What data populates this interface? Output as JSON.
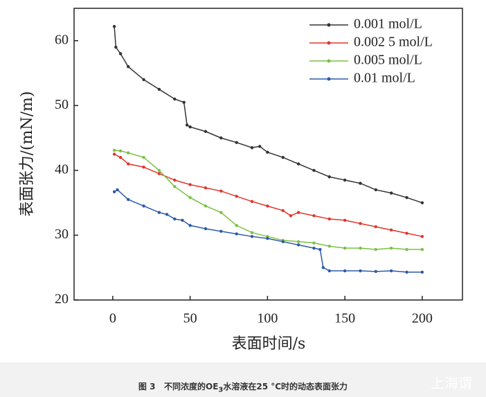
{
  "chart_data": {
    "type": "line",
    "x_label": "表面时间/s",
    "y_label": "表面张力/(mN/m)",
    "xlim": [
      -25,
      226
    ],
    "ylim": [
      20,
      65
    ],
    "xticks": [
      0,
      50,
      100,
      150,
      200
    ],
    "yticks": [
      20,
      30,
      40,
      50,
      60
    ],
    "legend": "upper right",
    "series": [
      {
        "name": "0.001 mol/L",
        "color": "#333333",
        "x": [
          1,
          2,
          5,
          10,
          20,
          30,
          40,
          46,
          48,
          50,
          60,
          70,
          80,
          90,
          95,
          100,
          110,
          120,
          130,
          140,
          150,
          160,
          170,
          180,
          190,
          200
        ],
        "values": [
          62.2,
          59,
          58,
          56,
          54,
          52.5,
          51,
          50.5,
          47,
          46.7,
          46,
          45,
          44.3,
          43.5,
          43.7,
          42.8,
          42,
          41,
          40,
          39,
          38.5,
          38,
          37,
          36.5,
          35.8,
          35
        ]
      },
      {
        "name": "0.002 5 mol/L",
        "color": "#e0352b",
        "x": [
          1,
          5,
          10,
          20,
          30,
          40,
          50,
          60,
          70,
          80,
          90,
          100,
          110,
          115,
          120,
          130,
          140,
          150,
          160,
          170,
          180,
          190,
          200
        ],
        "values": [
          42.5,
          42,
          41,
          40.5,
          39.5,
          38.5,
          37.8,
          37.3,
          36.8,
          36,
          35.2,
          34.5,
          33.8,
          33,
          33.5,
          33,
          32.5,
          32.3,
          31.8,
          31.3,
          30.8,
          30.3,
          29.8
        ]
      },
      {
        "name": "0.005 mol/L",
        "color": "#7ac143",
        "x": [
          1,
          5,
          10,
          20,
          30,
          40,
          50,
          60,
          70,
          80,
          90,
          100,
          110,
          120,
          130,
          140,
          150,
          160,
          170,
          180,
          190,
          200
        ],
        "values": [
          43.1,
          43,
          42.7,
          42,
          40,
          37.5,
          35.8,
          34.5,
          33.5,
          31.5,
          30.4,
          29.8,
          29.2,
          29,
          28.8,
          28.3,
          28,
          28,
          27.8,
          28,
          27.8,
          27.8
        ]
      },
      {
        "name": "0.01 mol/L",
        "color": "#2c5aa8",
        "x": [
          1,
          3,
          10,
          20,
          30,
          35,
          40,
          45,
          50,
          60,
          70,
          80,
          90,
          100,
          110,
          120,
          130,
          134,
          136,
          140,
          150,
          160,
          170,
          180,
          190,
          200
        ],
        "values": [
          36.7,
          37,
          35.5,
          34.5,
          33.5,
          33.2,
          32.5,
          32.3,
          31.5,
          31,
          30.6,
          30.2,
          29.8,
          29.5,
          29,
          28.5,
          28,
          27.8,
          25,
          24.5,
          24.5,
          24.5,
          24.4,
          24.5,
          24.3,
          24.3
        ]
      }
    ]
  },
  "caption": {
    "number": "图 3",
    "text_a": "不同浓度的OE",
    "subscript": "3",
    "text_b": "水溶液在25 °C时的动态表面张力"
  },
  "watermark": "上海谓"
}
